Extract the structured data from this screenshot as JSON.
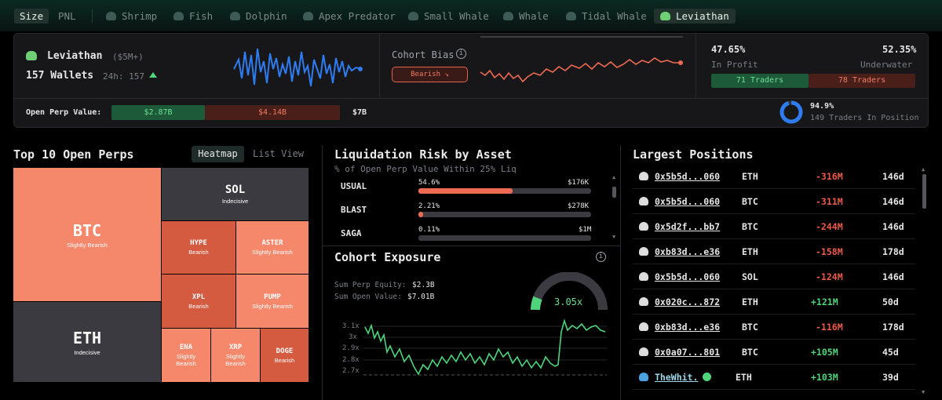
{
  "toolbar": {
    "size": "Size",
    "pnl": "PNL",
    "cohorts": [
      "Shrimp",
      "Fish",
      "Dolphin",
      "Apex Predator",
      "Small Whale",
      "Whale",
      "Tidal Whale",
      "Leviathan"
    ],
    "active_cohort": "Leviathan"
  },
  "header": {
    "name": "Leviathan",
    "range": "($5M+)",
    "wallets": "157 Wallets",
    "change": "24h: 157",
    "bias_label": "Cohort Bias",
    "bias_value": "Bearish",
    "in_profit_pct": "47.65%",
    "underwater_pct": "52.35%",
    "in_profit_label": "In Profit",
    "underwater_label": "Underwater",
    "profit_traders": "71 Traders",
    "underwater_traders": "78 Traders",
    "open_perp_label": "Open Perp Value:",
    "long_value": "$2.87B",
    "short_value": "$4.14B",
    "total_value": "$7B",
    "in_position_pct": "94.9%",
    "in_position_text": "149 Traders In Position",
    "in_position_frac": 0.949
  },
  "heatmap": {
    "title": "Top 10 Open Perps",
    "view_heatmap": "Heatmap",
    "view_list": "List View",
    "tiles": [
      {
        "name": "BTC",
        "status": "Slightly Bearish"
      },
      {
        "name": "ETH",
        "status": "Indecisive"
      },
      {
        "name": "SOL",
        "status": "Indecisive"
      },
      {
        "name": "HYPE",
        "status": "Bearish"
      },
      {
        "name": "ASTER",
        "status": "Slightly Bearish"
      },
      {
        "name": "XPL",
        "status": "Bearish"
      },
      {
        "name": "PUMP",
        "status": "Slightly Bearish"
      },
      {
        "name": "ENA",
        "status": "Slightly Bearish"
      },
      {
        "name": "XRP",
        "status": "Slightly Bearish"
      },
      {
        "name": "DOGE",
        "status": "Bearish"
      }
    ]
  },
  "liquidation": {
    "title": "Liquidation Risk by Asset",
    "subtitle": "% of Open Perp Value Within 25% Liq",
    "rows": [
      {
        "asset": "USUAL",
        "pct": "54.6%",
        "value": "$176K",
        "frac": 0.546
      },
      {
        "asset": "BLAST",
        "pct": "2.21%",
        "value": "$278K",
        "frac": 0.0221
      },
      {
        "asset": "SAGA",
        "pct": "0.11%",
        "value": "$1M",
        "frac": 0.0011
      }
    ]
  },
  "exposure": {
    "title": "Cohort Exposure",
    "equity_label": "Sum Perp Equity:",
    "equity": "$2.3B",
    "open_label": "Sum Open Value:",
    "open_value": "$7.01B",
    "leverage": "3.05x",
    "y_ticks": [
      "3.1x",
      "3x",
      "2.9x",
      "2.8x",
      "2.7x"
    ]
  },
  "positions": {
    "title": "Largest Positions",
    "rows": [
      {
        "addr": "0x5b5d...060",
        "asset": "ETH",
        "size": "-316M",
        "age": "146d"
      },
      {
        "addr": "0x5b5d...060",
        "asset": "BTC",
        "size": "-311M",
        "age": "146d"
      },
      {
        "addr": "0x5d2f...bb7",
        "asset": "BTC",
        "size": "-244M",
        "age": "146d"
      },
      {
        "addr": "0xb83d...e36",
        "asset": "ETH",
        "size": "-158M",
        "age": "178d"
      },
      {
        "addr": "0x5b5d...060",
        "asset": "SOL",
        "size": "-124M",
        "age": "146d"
      },
      {
        "addr": "0x020c...872",
        "asset": "ETH",
        "size": "+121M",
        "age": "50d"
      },
      {
        "addr": "0xb83d...e36",
        "asset": "BTC",
        "size": "-116M",
        "age": "178d"
      },
      {
        "addr": "0x0a07...801",
        "asset": "BTC",
        "size": "+105M",
        "age": "45d"
      },
      {
        "addr": "TheWhit.",
        "asset": "ETH",
        "size": "+103M",
        "age": "39d"
      }
    ]
  },
  "colors": {
    "accent": "#4fd47c",
    "negative": "#ef5a4a",
    "bearish_tile": "#f5876a",
    "neutral_tile": "#3a3a40"
  }
}
